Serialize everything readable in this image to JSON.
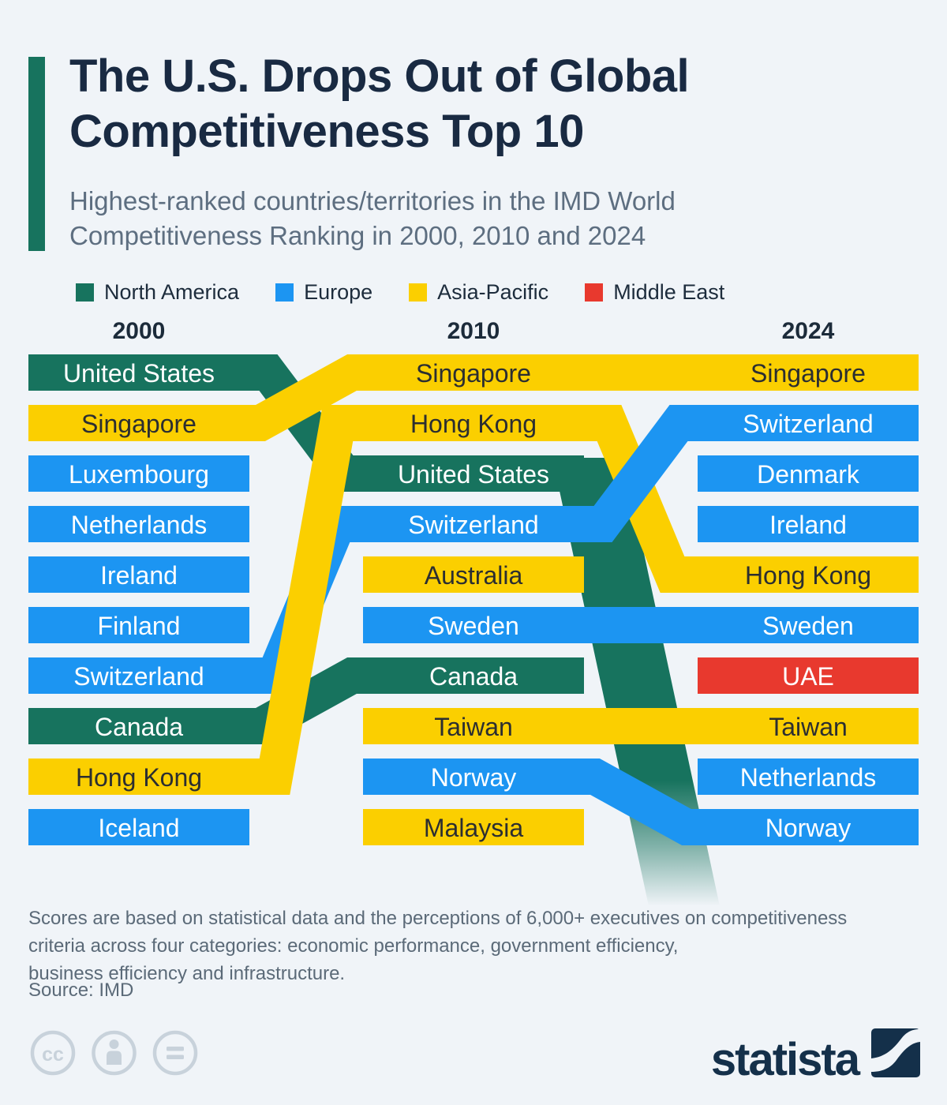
{
  "background_color": "#F0F4F8",
  "title": {
    "lines": [
      "The U.S. Drops Out of Global",
      "Competitiveness Top 10"
    ],
    "color": "#192A42",
    "accent_color": "#17735E"
  },
  "subtitle": {
    "lines": [
      "Highest-ranked countries/territories in the IMD World",
      "Competitiveness Ranking in 2000, 2010 and 2024"
    ],
    "color": "#5D6E80"
  },
  "legend": [
    {
      "label": "North America",
      "region": "North America"
    },
    {
      "label": "Europe",
      "region": "Europe"
    },
    {
      "label": "Asia-Pacific",
      "region": "Asia-Pacific"
    },
    {
      "label": "Middle East",
      "region": "Middle East"
    }
  ],
  "region_colors": {
    "North America": "#17735E",
    "Europe": "#1C95F2",
    "Asia-Pacific": "#FBCF00",
    "Middle East": "#E8392E"
  },
  "text_on_yellow": "#2B2E31",
  "text_on_dark": "#FFFFFF",
  "chart_data": {
    "type": "bump",
    "columns": [
      {
        "year": "2000",
        "entries": [
          {
            "rank": 1,
            "name": "United States",
            "region": "North America"
          },
          {
            "rank": 2,
            "name": "Singapore",
            "region": "Asia-Pacific"
          },
          {
            "rank": 3,
            "name": "Luxembourg",
            "region": "Europe"
          },
          {
            "rank": 4,
            "name": "Netherlands",
            "region": "Europe"
          },
          {
            "rank": 5,
            "name": "Ireland",
            "region": "Europe"
          },
          {
            "rank": 6,
            "name": "Finland",
            "region": "Europe"
          },
          {
            "rank": 7,
            "name": "Switzerland",
            "region": "Europe"
          },
          {
            "rank": 8,
            "name": "Canada",
            "region": "North America"
          },
          {
            "rank": 9,
            "name": "Hong Kong",
            "region": "Asia-Pacific"
          },
          {
            "rank": 10,
            "name": "Iceland",
            "region": "Europe"
          }
        ]
      },
      {
        "year": "2010",
        "entries": [
          {
            "rank": 1,
            "name": "Singapore",
            "region": "Asia-Pacific"
          },
          {
            "rank": 2,
            "name": "Hong Kong",
            "region": "Asia-Pacific"
          },
          {
            "rank": 3,
            "name": "United States",
            "region": "North America"
          },
          {
            "rank": 4,
            "name": "Switzerland",
            "region": "Europe"
          },
          {
            "rank": 5,
            "name": "Australia",
            "region": "Asia-Pacific"
          },
          {
            "rank": 6,
            "name": "Sweden",
            "region": "Europe"
          },
          {
            "rank": 7,
            "name": "Canada",
            "region": "North America"
          },
          {
            "rank": 8,
            "name": "Taiwan",
            "region": "Asia-Pacific"
          },
          {
            "rank": 9,
            "name": "Norway",
            "region": "Europe"
          },
          {
            "rank": 10,
            "name": "Malaysia",
            "region": "Asia-Pacific"
          }
        ]
      },
      {
        "year": "2024",
        "entries": [
          {
            "rank": 1,
            "name": "Singapore",
            "region": "Asia-Pacific"
          },
          {
            "rank": 2,
            "name": "Switzerland",
            "region": "Europe"
          },
          {
            "rank": 3,
            "name": "Denmark",
            "region": "Europe"
          },
          {
            "rank": 4,
            "name": "Ireland",
            "region": "Europe"
          },
          {
            "rank": 5,
            "name": "Hong Kong",
            "region": "Asia-Pacific"
          },
          {
            "rank": 6,
            "name": "Sweden",
            "region": "Europe"
          },
          {
            "rank": 7,
            "name": "UAE",
            "region": "Middle East"
          },
          {
            "rank": 8,
            "name": "Taiwan",
            "region": "Asia-Pacific"
          },
          {
            "rank": 9,
            "name": "Netherlands",
            "region": "Europe"
          },
          {
            "rank": 10,
            "name": "Norway",
            "region": "Europe"
          }
        ]
      }
    ],
    "links": [
      {
        "country": "United States",
        "from_year": "2000",
        "to_year": "2010"
      },
      {
        "country": "Singapore",
        "from_year": "2000",
        "to_year": "2010"
      },
      {
        "country": "Switzerland",
        "from_year": "2000",
        "to_year": "2010"
      },
      {
        "country": "Canada",
        "from_year": "2000",
        "to_year": "2010"
      },
      {
        "country": "Hong Kong",
        "from_year": "2000",
        "to_year": "2010"
      },
      {
        "country": "Singapore",
        "from_year": "2010",
        "to_year": "2024"
      },
      {
        "country": "Hong Kong",
        "from_year": "2010",
        "to_year": "2024"
      },
      {
        "country": "Switzerland",
        "from_year": "2010",
        "to_year": "2024"
      },
      {
        "country": "Sweden",
        "from_year": "2010",
        "to_year": "2024"
      },
      {
        "country": "Taiwan",
        "from_year": "2010",
        "to_year": "2024"
      },
      {
        "country": "Norway",
        "from_year": "2010",
        "to_year": "2024"
      }
    ],
    "dropout": {
      "country": "United States",
      "after_year": "2010"
    }
  },
  "footer": {
    "note_lines": [
      "Scores are based on statistical data and the perceptions of 6,000+ executives on competitiveness",
      "criteria across four categories: economic performance, government efficiency,",
      "business efficiency and infrastructure."
    ],
    "source": "Source: IMD",
    "color": "#5B6A78"
  },
  "branding": {
    "logo_text": "statista",
    "navy": "#14304A",
    "icon_gray": "#C8D2DB",
    "cc_icons": [
      "cc",
      "attribution",
      "equals"
    ]
  }
}
